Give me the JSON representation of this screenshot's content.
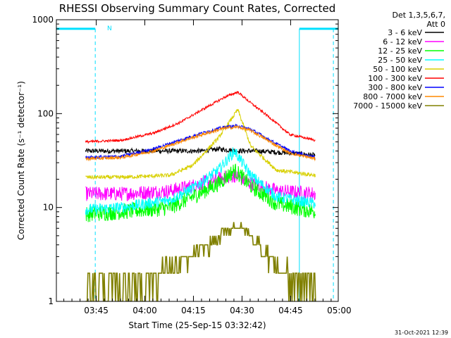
{
  "chart_data": {
    "type": "line",
    "title": "RHESSI Observing Summary Count Rates, Corrected",
    "xlabel": "Start Time (25-Sep-15 03:32:42)",
    "ylabel": "Corrected Count Rate (s⁻¹ detector⁻¹)",
    "yscale": "log",
    "ylim": [
      1,
      1000
    ],
    "xlim_minutes": [
      0,
      87
    ],
    "x_ticks": [
      {
        "label": "03:45",
        "minute": 12.3
      },
      {
        "label": "04:00",
        "minute": 27.3
      },
      {
        "label": "04:15",
        "minute": 42.3
      },
      {
        "label": "04:30",
        "minute": 57.3
      },
      {
        "label": "04:45",
        "minute": 72.3
      },
      {
        "label": "05:00",
        "minute": 87.3
      }
    ],
    "y_ticks": [
      {
        "label": "1",
        "value": 1
      },
      {
        "label": "10",
        "value": 10
      },
      {
        "label": "100",
        "value": 100
      },
      {
        "label": "1000",
        "value": 1000
      }
    ],
    "legend_header": [
      "Det 1,3,5,6,7,",
      "Att 0"
    ],
    "legend_position": "right",
    "annotation_N": "N",
    "footer_date": "31-Oct-2021 12:39",
    "series": [
      {
        "name": "3 - 6 keV",
        "color": "#000000",
        "x": [
          9,
          20,
          35,
          45,
          50,
          56,
          62,
          72,
          80
        ],
        "y": [
          40,
          40,
          40,
          40,
          42,
          40,
          40,
          38,
          36
        ]
      },
      {
        "name": "6 - 12 keV",
        "color": "#ff00ff",
        "x": [
          9,
          20,
          35,
          42,
          50,
          55,
          60,
          68,
          80
        ],
        "y": [
          14,
          14,
          15,
          17,
          20,
          22,
          18,
          15,
          14
        ]
      },
      {
        "name": "12 - 25 keV",
        "color": "#00ff00",
        "x": [
          9,
          20,
          35,
          42,
          50,
          55,
          60,
          68,
          80
        ],
        "y": [
          8.5,
          9,
          10,
          13,
          18,
          25,
          17,
          11,
          9
        ]
      },
      {
        "name": "25 - 50 keV",
        "color": "#00ffff",
        "x": [
          9,
          20,
          35,
          42,
          50,
          55,
          60,
          68,
          80
        ],
        "y": [
          9.5,
          10,
          12,
          16,
          25,
          40,
          22,
          13,
          11
        ]
      },
      {
        "name": "50 - 100 keV",
        "color": "#d8d000",
        "x": [
          9,
          20,
          35,
          42,
          50,
          56,
          60,
          68,
          80
        ],
        "y": [
          21,
          21,
          22,
          28,
          55,
          110,
          45,
          25,
          22
        ]
      },
      {
        "name": "100 - 300 keV",
        "color": "#ff0000",
        "x": [
          9,
          20,
          30,
          38,
          45,
          52,
          56,
          60,
          66,
          72,
          80
        ],
        "y": [
          50,
          52,
          62,
          80,
          110,
          150,
          170,
          130,
          90,
          60,
          52
        ]
      },
      {
        "name": "300 - 800 keV",
        "color": "#0000ff",
        "x": [
          9,
          20,
          30,
          38,
          45,
          52,
          56,
          60,
          66,
          72,
          80
        ],
        "y": [
          34,
          35,
          42,
          52,
          62,
          72,
          74,
          68,
          52,
          40,
          34
        ]
      },
      {
        "name": "800 - 7000 keV",
        "color": "#ff8800",
        "x": [
          9,
          20,
          30,
          38,
          45,
          52,
          56,
          60,
          66,
          72,
          80
        ],
        "y": [
          33,
          34,
          40,
          50,
          60,
          70,
          72,
          66,
          50,
          38,
          33
        ]
      },
      {
        "name": "7000 - 15000 keV",
        "color": "#808000",
        "x": [
          9,
          20,
          30,
          38,
          45,
          52,
          56,
          60,
          66,
          72,
          80
        ],
        "y": [
          1.5,
          1.5,
          1.8,
          2.4,
          3.4,
          5.5,
          6.5,
          5,
          3,
          1.7,
          1.5
        ]
      }
    ],
    "cyan_markers": {
      "color": "#00e0ff",
      "bars": [
        [
          0,
          12
        ],
        [
          75,
          87
        ]
      ],
      "bar_value": 800,
      "solid_lines": [
        0,
        75
      ],
      "dashed_lines": [
        12,
        85.5
      ]
    }
  }
}
